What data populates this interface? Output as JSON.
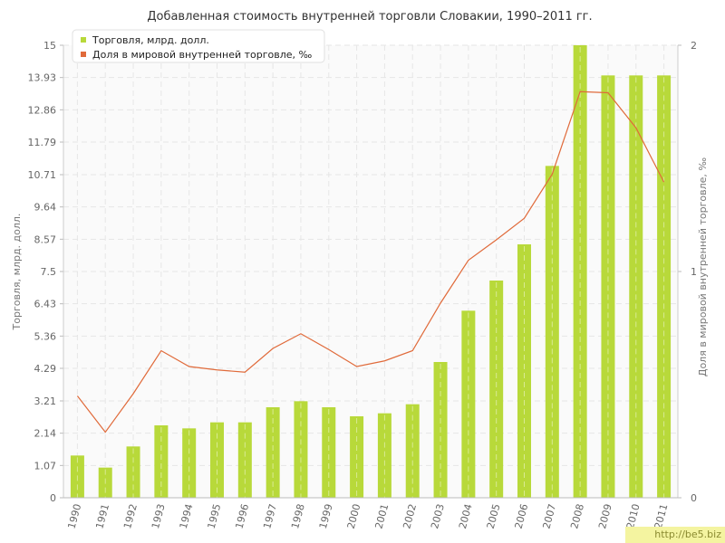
{
  "chart_data": {
    "type": "bar+line",
    "title": "Добавленная стоимость внутренней торговли Словакии, 1990–2011 гг.",
    "ylabel": "Торговля, млрд. долл.",
    "y2label": "Доля в мировой внутренней торговле, ‰",
    "ylim": [
      0,
      15
    ],
    "y2lim": [
      0,
      2
    ],
    "yticks": [
      "0",
      "1.07",
      "2.14",
      "3.21",
      "4.29",
      "5.36",
      "6.43",
      "7.5",
      "8.57",
      "9.64",
      "10.71",
      "11.79",
      "12.86",
      "13.93",
      "15"
    ],
    "y2ticks": [
      "0",
      "1",
      "2"
    ],
    "categories": [
      "1990",
      "1991",
      "1992",
      "1993",
      "1994",
      "1995",
      "1996",
      "1997",
      "1998",
      "1999",
      "2000",
      "2001",
      "2002",
      "2003",
      "2004",
      "2005",
      "2006",
      "2007",
      "2008",
      "2009",
      "2010",
      "2011"
    ],
    "grid": true,
    "legend_position": "top-left",
    "series": [
      {
        "name": "Торговля, млрд. долл.",
        "type": "bar",
        "axis": "left",
        "color": "#b8d93a",
        "values": [
          1.4,
          1.0,
          1.7,
          2.4,
          2.3,
          2.5,
          2.5,
          3.0,
          3.2,
          3.0,
          2.7,
          2.8,
          3.1,
          4.5,
          6.2,
          7.2,
          8.4,
          11.0,
          15.0,
          14.0,
          14.0,
          14.0
        ]
      },
      {
        "name": "Доля в мировой внутренней торговле, ‰",
        "type": "line",
        "axis": "right",
        "color": "#e06a3a",
        "values": [
          0.45,
          0.29,
          0.46,
          0.65,
          0.58,
          0.565,
          0.555,
          0.66,
          0.725,
          0.655,
          0.58,
          0.605,
          0.65,
          0.86,
          1.05,
          1.14,
          1.235,
          1.43,
          1.795,
          1.79,
          1.635,
          1.395
        ]
      }
    ]
  },
  "watermark": "http://be5.biz"
}
